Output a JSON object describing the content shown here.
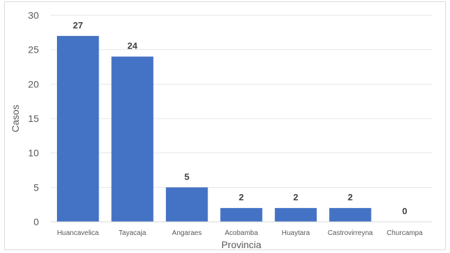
{
  "chart_data": {
    "type": "bar",
    "categories": [
      "Huancavelica",
      "Tayacaja",
      "Angaraes",
      "Acobamba",
      "Huaytara",
      "Castrovirreyna",
      "Churcampa"
    ],
    "values": [
      27,
      24,
      5,
      2,
      2,
      2,
      0
    ],
    "data_labels": [
      "27",
      "24",
      "5",
      "2",
      "2",
      "2",
      "0"
    ],
    "xlabel": "Provincia",
    "ylabel": "Casos",
    "ylim": [
      0,
      30
    ],
    "yticks": [
      "0",
      "5",
      "10",
      "15",
      "20",
      "25",
      "30"
    ],
    "grid": true,
    "legend": "none",
    "bar_color": "#4472C4",
    "grid_color": "#e6e6e6"
  }
}
